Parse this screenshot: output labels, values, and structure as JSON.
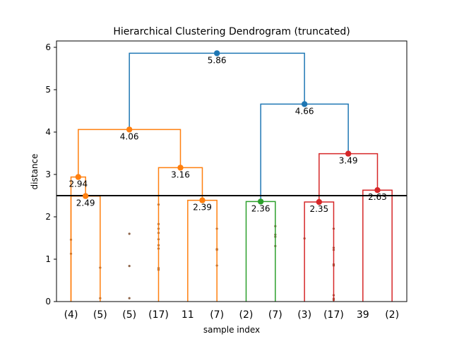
{
  "chart_data": {
    "type": "dendrogram",
    "title": "Hierarchical Clustering Dendrogram (truncated)",
    "xlabel": "sample index",
    "ylabel": "distance",
    "ylim": [
      0,
      6.15
    ],
    "yticks": [
      0,
      1,
      2,
      3,
      4,
      5,
      6
    ],
    "cut_line": 2.5,
    "leaves": [
      "(4)",
      "(5)",
      "(5)",
      "(17)",
      "11",
      "(7)",
      "(2)",
      "(7)",
      "(3)",
      "(17)",
      "39",
      "(2)"
    ],
    "colors": {
      "orange": "#ff7f0e",
      "green": "#2ca02c",
      "red": "#d62728",
      "blue": "#1f77b4",
      "cut": "#000000"
    },
    "merges": [
      {
        "left": [
          0.0,
          0.0
        ],
        "top": 2.49,
        "right": [
          1.0,
          0.0
        ],
        "color": "orange",
        "label": "2.49",
        "marker": true
      },
      {
        "left": [
          0.0,
          0.0
        ],
        "top": 2.94,
        "right": [
          0.5,
          2.49
        ],
        "color": "orange",
        "label": "2.94",
        "marker": true
      },
      {
        "left": [
          4.0,
          0.0
        ],
        "top": 2.39,
        "right": [
          5.0,
          0.0
        ],
        "color": "orange",
        "label": "2.39",
        "marker": true
      },
      {
        "left": [
          3.0,
          0.0
        ],
        "top": 3.16,
        "right": [
          4.5,
          2.39
        ],
        "color": "orange",
        "label": "3.16",
        "marker": true
      },
      {
        "left": [
          0.25,
          2.94
        ],
        "top": 4.06,
        "right": [
          3.75,
          3.16
        ],
        "color": "orange",
        "label": "4.06",
        "marker": true
      },
      {
        "left": [
          6.0,
          0.0
        ],
        "top": 2.36,
        "right": [
          7.0,
          0.0
        ],
        "color": "green",
        "label": "2.36",
        "marker": true
      },
      {
        "left": [
          8.0,
          0.0
        ],
        "top": 2.35,
        "right": [
          9.0,
          0.0
        ],
        "color": "red",
        "label": "2.35",
        "marker": true
      },
      {
        "left": [
          10.0,
          0.0
        ],
        "top": 2.63,
        "right": [
          11.0,
          0.0
        ],
        "color": "red",
        "label": "2.63",
        "marker": true
      },
      {
        "left": [
          8.5,
          2.35
        ],
        "top": 3.49,
        "right": [
          10.5,
          2.63
        ],
        "color": "red",
        "label": "3.49",
        "marker": true
      },
      {
        "left": [
          6.5,
          2.36
        ],
        "top": 4.66,
        "right": [
          9.5,
          3.49
        ],
        "color": "blue",
        "label": "4.66",
        "marker": true
      },
      {
        "left": [
          2.0,
          4.06
        ],
        "top": 5.86,
        "right": [
          8.0,
          4.66
        ],
        "color": "blue",
        "label": "5.86",
        "marker": true
      }
    ],
    "leaf_dots": [
      {
        "x": 0.0,
        "y": [
          1.46,
          1.13
        ]
      },
      {
        "x": 1.0,
        "y": [
          0.8,
          0.08
        ]
      },
      {
        "x": 2.0,
        "y": [
          1.6,
          0.84,
          0.08
        ]
      },
      {
        "x": 3.0,
        "y": [
          2.29,
          1.83,
          1.72,
          1.62,
          1.47,
          1.33,
          1.25,
          0.79,
          0.75
        ]
      },
      {
        "x": 5.0,
        "y": [
          1.72,
          1.24,
          1.22,
          0.85
        ]
      },
      {
        "x": 7.0,
        "y": [
          1.78,
          1.58,
          1.53,
          1.31
        ]
      },
      {
        "x": 8.0,
        "y": [
          1.49
        ]
      },
      {
        "x": 9.0,
        "y": [
          1.72,
          1.27,
          1.22,
          0.88,
          0.85,
          0.15,
          0.07,
          0.04
        ]
      }
    ]
  }
}
